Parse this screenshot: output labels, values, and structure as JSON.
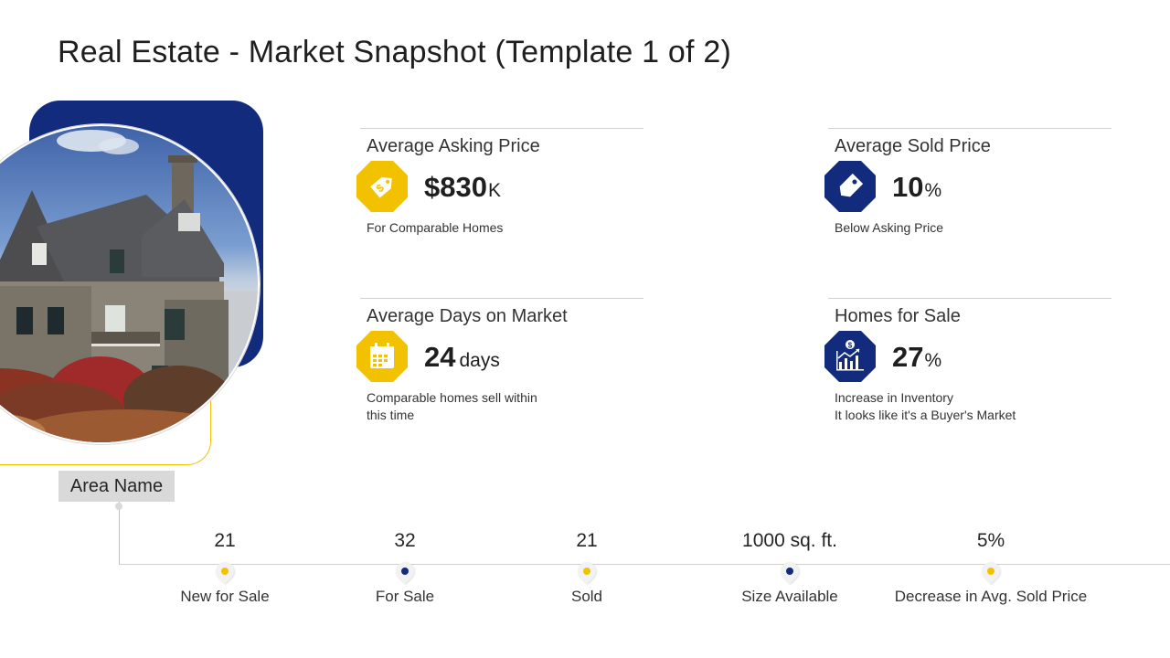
{
  "page": {
    "title": "Real Estate - Market Snapshot (Template 1 of 2)"
  },
  "colors": {
    "navy": "#132b7c",
    "gold": "#f2c200",
    "gray_label": "#d9d9d9"
  },
  "area_label": "Area Name",
  "stats": [
    {
      "heading": "Average Asking Price",
      "icon": "price-tag-dollar-icon",
      "icon_color": "#f2c200",
      "value": "$830",
      "unit": "K",
      "note": "For Comparable Homes"
    },
    {
      "heading": "Average Sold Price",
      "icon": "tag-icon",
      "icon_color": "#132b7c",
      "value": "10",
      "unit": "%",
      "note": "Below Asking Price"
    },
    {
      "heading": "Average Days on Market",
      "icon": "calendar-icon",
      "icon_color": "#f2c200",
      "value": "24",
      "unit": "days",
      "note_lines": [
        "Comparable homes sell within",
        "this time"
      ]
    },
    {
      "heading": "Homes for Sale",
      "icon": "growth-chart-dollar-icon",
      "icon_color": "#132b7c",
      "value": "27",
      "unit": "%",
      "note_lines": [
        "Increase in Inventory",
        "It looks like it's a Buyer's Market"
      ]
    }
  ],
  "timeline": [
    {
      "value": "21",
      "label": "New for Sale",
      "marker_color": "#f2c200"
    },
    {
      "value": "32",
      "label": "For Sale",
      "marker_color": "#132b7c"
    },
    {
      "value": "21",
      "label": "Sold",
      "marker_color": "#f2c200"
    },
    {
      "value": "1000 sq. ft.",
      "label": "Size Available",
      "marker_color": "#132b7c"
    },
    {
      "value": "5%",
      "label": "Decrease in Avg. Sold Price",
      "marker_color": "#f2c200"
    }
  ]
}
